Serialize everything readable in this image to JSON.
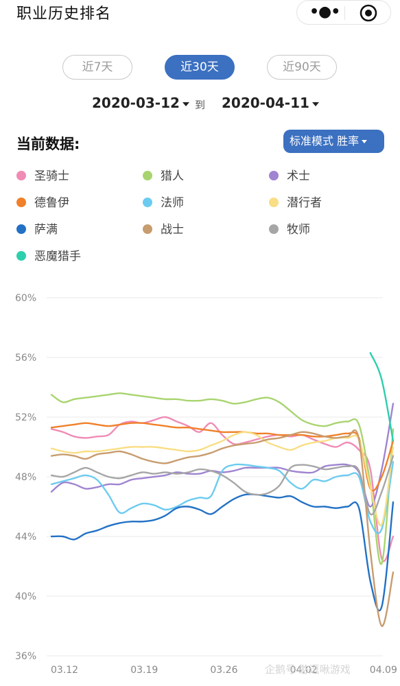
{
  "header": {
    "title": "职业历史排名",
    "more_icon": "more-dots-icon",
    "close_icon": "target-icon"
  },
  "tabs": [
    {
      "label": "近7天",
      "active": false
    },
    {
      "label": "近30天",
      "active": true
    },
    {
      "label": "近90天",
      "active": false
    }
  ],
  "date_range": {
    "start": "2020-03-12",
    "separator": "到",
    "end": "2020-04-11"
  },
  "current_label": "当前数据:",
  "mode_button": "标准模式 胜率",
  "colors": {
    "accent": "#3c70c0"
  },
  "watermark": "企鹅号 憨逗啾游戏",
  "chart_data": {
    "type": "line",
    "ylim": [
      36,
      60
    ],
    "yticks": [
      "60%",
      "56%",
      "52%",
      "48%",
      "44%",
      "40%",
      "36%"
    ],
    "xticks": [
      "03.12",
      "03.19",
      "03.26",
      "04.02",
      "04.09"
    ],
    "x": [
      "03.12",
      "03.13",
      "03.14",
      "03.15",
      "03.16",
      "03.17",
      "03.18",
      "03.19",
      "03.20",
      "03.21",
      "03.22",
      "03.23",
      "03.24",
      "03.25",
      "03.26",
      "03.27",
      "03.28",
      "03.29",
      "03.30",
      "03.31",
      "04.01",
      "04.02",
      "04.03",
      "04.04",
      "04.05",
      "04.06",
      "04.07",
      "04.08",
      "04.09",
      "04.10",
      "04.11"
    ],
    "grid": true,
    "legend_position": "top",
    "series": [
      {
        "name": "圣骑士",
        "color": "#f08bb5",
        "values": [
          51.2,
          51.0,
          50.7,
          50.6,
          50.7,
          50.8,
          51.5,
          51.7,
          51.6,
          51.8,
          52.0,
          51.7,
          51.4,
          51.0,
          51.6,
          50.8,
          50.2,
          50.3,
          50.5,
          50.7,
          50.8,
          50.7,
          50.8,
          50.5,
          50.2,
          50.0,
          50.3,
          49.8,
          48.5,
          42.5,
          44.0
        ]
      },
      {
        "name": "猎人",
        "color": "#a8d46f",
        "values": [
          53.5,
          53.0,
          53.2,
          53.3,
          53.4,
          53.5,
          53.6,
          53.5,
          53.4,
          53.3,
          53.2,
          53.2,
          53.1,
          53.1,
          53.2,
          53.1,
          52.9,
          53.0,
          53.2,
          53.3,
          53.0,
          52.4,
          51.8,
          51.5,
          51.4,
          51.6,
          51.7,
          51.5,
          47.5,
          42.2,
          51.2
        ]
      },
      {
        "name": "术士",
        "color": "#9f84d1",
        "values": [
          47.0,
          47.6,
          47.5,
          47.2,
          47.3,
          47.5,
          47.5,
          47.8,
          47.9,
          48.0,
          48.1,
          48.3,
          48.2,
          48.2,
          48.4,
          48.3,
          48.4,
          48.6,
          48.6,
          48.6,
          48.6,
          48.4,
          48.3,
          48.3,
          48.7,
          48.8,
          48.8,
          48.3,
          46.0,
          48.5,
          52.9
        ]
      },
      {
        "name": "德鲁伊",
        "color": "#f0802a",
        "values": [
          51.3,
          51.4,
          51.5,
          51.6,
          51.5,
          51.4,
          51.5,
          51.6,
          51.6,
          51.5,
          51.4,
          51.3,
          51.3,
          51.2,
          51.1,
          51.0,
          51.0,
          51.0,
          50.9,
          50.9,
          50.8,
          50.8,
          50.8,
          50.7,
          50.7,
          50.8,
          50.9,
          50.6,
          47.2,
          48.0,
          50.4
        ]
      },
      {
        "name": "法师",
        "color": "#6ccbf0",
        "values": [
          47.5,
          47.7,
          47.9,
          48.1,
          47.8,
          46.8,
          45.6,
          45.9,
          46.2,
          46.1,
          45.8,
          46.0,
          46.4,
          46.6,
          46.7,
          48.4,
          48.8,
          48.8,
          48.7,
          48.6,
          48.4,
          47.6,
          47.2,
          47.8,
          47.7,
          48.0,
          48.1,
          48.0,
          45.0,
          44.5,
          49.0
        ]
      },
      {
        "name": "潜行者",
        "color": "#f8de84",
        "values": [
          49.9,
          49.7,
          49.6,
          49.7,
          49.7,
          49.8,
          49.9,
          50.0,
          50.0,
          50.0,
          49.9,
          49.8,
          49.7,
          49.8,
          50.1,
          50.4,
          50.8,
          51.0,
          50.8,
          50.3,
          50.0,
          49.8,
          50.1,
          50.3,
          50.4,
          50.6,
          50.6,
          50.5,
          47.3,
          44.8,
          50.0
        ]
      },
      {
        "name": "萨满",
        "color": "#2271c5",
        "values": [
          44.0,
          44.0,
          43.8,
          44.2,
          44.4,
          44.7,
          44.9,
          45.0,
          45.0,
          45.1,
          45.4,
          45.9,
          46.0,
          45.8,
          45.5,
          46.0,
          46.5,
          46.8,
          46.8,
          46.7,
          46.6,
          46.7,
          46.3,
          46.0,
          46.0,
          45.9,
          46.0,
          45.9,
          41.0,
          39.3,
          46.3
        ]
      },
      {
        "name": "战士",
        "color": "#c79c6e",
        "values": [
          49.4,
          49.5,
          49.4,
          49.2,
          49.5,
          49.6,
          49.7,
          49.5,
          49.2,
          49.0,
          48.9,
          49.1,
          49.3,
          49.4,
          49.6,
          49.9,
          50.1,
          50.2,
          50.3,
          50.5,
          50.6,
          50.8,
          51.0,
          50.9,
          50.7,
          50.6,
          50.7,
          50.5,
          43.0,
          38.0,
          41.6
        ]
      },
      {
        "name": "牧师",
        "color": "#a6a6a6",
        "values": [
          48.1,
          48.0,
          48.3,
          48.6,
          48.3,
          48.0,
          47.9,
          48.1,
          48.3,
          48.2,
          48.3,
          48.2,
          48.3,
          48.5,
          48.4,
          48.1,
          47.6,
          47.0,
          46.8,
          46.9,
          47.4,
          48.6,
          48.8,
          48.7,
          48.5,
          48.6,
          48.7,
          48.4,
          45.5,
          47.0,
          49.4
        ]
      },
      {
        "name": "恶魔猎手",
        "color": "#2ccfae",
        "values": [
          null,
          null,
          null,
          null,
          null,
          null,
          null,
          null,
          null,
          null,
          null,
          null,
          null,
          null,
          null,
          null,
          null,
          null,
          null,
          null,
          null,
          null,
          null,
          null,
          null,
          null,
          null,
          null,
          56.3,
          54.5,
          50.4
        ]
      }
    ]
  }
}
